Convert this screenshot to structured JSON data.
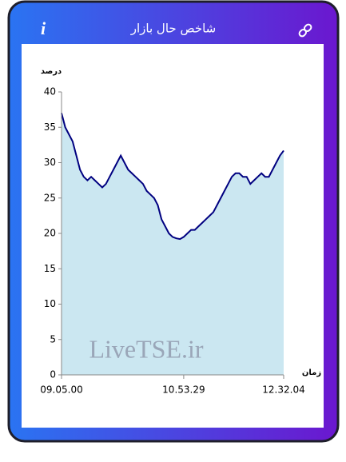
{
  "chart_data": {
    "type": "area",
    "title": "شاخص حال بازار",
    "ylabel": "درصد",
    "xlabel": "زمان",
    "watermark": "LiveTSE.ir",
    "categories": [
      "09.05.00",
      null,
      null,
      null,
      null,
      null,
      null,
      null,
      null,
      null,
      null,
      null,
      null,
      null,
      null,
      null,
      null,
      null,
      null,
      null,
      null,
      null,
      null,
      null,
      null,
      null,
      null,
      null,
      null,
      null,
      null,
      null,
      null,
      "10.53.29",
      null,
      null,
      null,
      null,
      null,
      null,
      null,
      null,
      null,
      null,
      null,
      null,
      null,
      null,
      null,
      null,
      null,
      null,
      null,
      null,
      null,
      null,
      null,
      null,
      null,
      null,
      "12.32.04"
    ],
    "values": [
      37,
      35,
      34,
      33,
      31,
      29,
      28,
      27.5,
      28,
      27.5,
      27,
      26.5,
      27,
      28,
      29,
      30,
      31,
      30,
      29,
      28.5,
      28,
      27.5,
      27,
      26,
      25.5,
      25,
      24,
      22,
      21,
      20,
      19.5,
      19.3,
      19.2,
      19.5,
      20,
      20.5,
      20.5,
      21,
      21.5,
      22,
      22.5,
      23,
      24,
      25,
      26,
      27,
      28,
      28.5,
      28.5,
      28,
      28,
      27,
      27.5,
      28,
      28.5,
      28,
      28,
      29,
      30,
      31,
      31.7
    ],
    "color": "#000080",
    "fill": "#cbe7f1",
    "ylim": [
      0,
      40
    ],
    "yticks": [
      0,
      5,
      10,
      15,
      20,
      25,
      30,
      35,
      40
    ]
  }
}
